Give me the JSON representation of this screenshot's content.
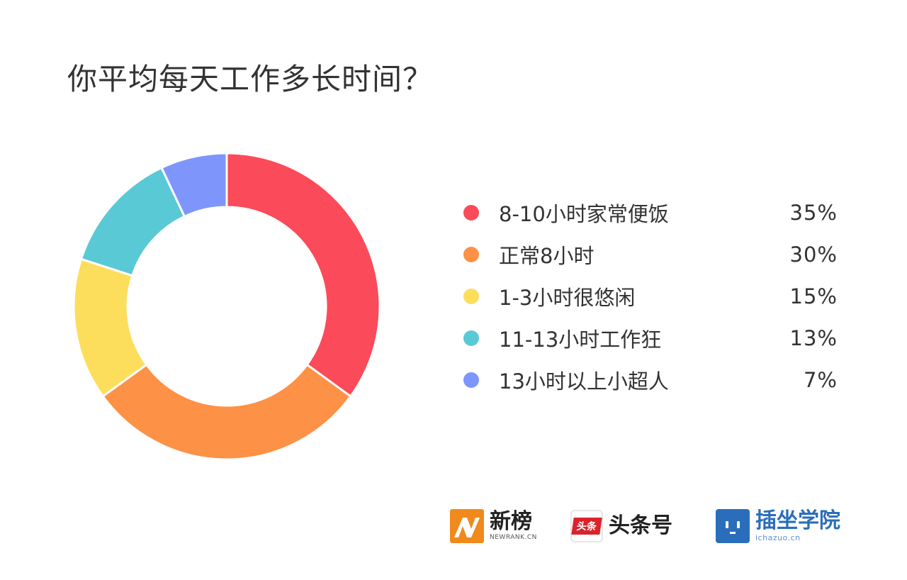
{
  "title": "你平均每天工作多长时间？",
  "chart_data": {
    "type": "pie",
    "donut": true,
    "title": "你平均每天工作多长时间？",
    "categories": [
      "8-10小时家常便饭",
      "正常8小时",
      "1-3小时很悠闲",
      "11-13小时工作狂",
      "13小时以上小超人"
    ],
    "values": [
      35,
      30,
      15,
      13,
      7
    ],
    "value_labels": [
      "35%",
      "30%",
      "15%",
      "13%",
      "7%"
    ],
    "colors": [
      "#fb4a59",
      "#fd9146",
      "#fdde5c",
      "#59c9d6",
      "#7e95fc"
    ],
    "legend_position": "right"
  },
  "footer": {
    "brands": [
      {
        "name": "新榜",
        "sub": "NEWRANK.CN",
        "icon": "newrank-logo-icon"
      },
      {
        "name": "头条号",
        "badge": "头条",
        "icon": "toutiao-logo-icon"
      },
      {
        "name": "插坐学院",
        "sub": "ichazuo.cn",
        "icon": "chazuo-logo-icon"
      }
    ]
  }
}
